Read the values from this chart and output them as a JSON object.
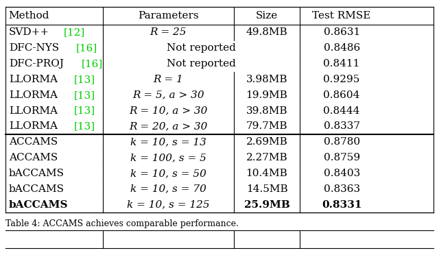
{
  "caption": "Table 4: ACCAMS achieves comparable performance.",
  "columns": [
    "Method",
    "Parameters",
    "Size",
    "Test RMSE"
  ],
  "rows": [
    {
      "method": "SVD++",
      "ref": "[12]",
      "params": "R = 25",
      "params_span": false,
      "size": "49.8MB",
      "rmse": "0.8631",
      "bold_size": false,
      "bold_rmse": false,
      "bold_method": false,
      "section": "top"
    },
    {
      "method": "DFC-NYS",
      "ref": "[16]",
      "params": "Not reported",
      "params_span": true,
      "size": "",
      "rmse": "0.8486",
      "bold_size": false,
      "bold_rmse": false,
      "bold_method": false,
      "section": "top"
    },
    {
      "method": "DFC-PROJ",
      "ref": "[16]",
      "params": "Not reported",
      "params_span": true,
      "size": "",
      "rmse": "0.8411",
      "bold_size": false,
      "bold_rmse": false,
      "bold_method": false,
      "section": "top"
    },
    {
      "method": "LLORMA",
      "ref": "[13]",
      "params": "R = 1",
      "params_span": false,
      "size": "3.98MB",
      "rmse": "0.9295",
      "bold_size": false,
      "bold_rmse": false,
      "bold_method": false,
      "section": "top"
    },
    {
      "method": "LLORMA",
      "ref": "[13]",
      "params": "R = 5, a > 30",
      "params_span": false,
      "size": "19.9MB",
      "rmse": "0.8604",
      "bold_size": false,
      "bold_rmse": false,
      "bold_method": false,
      "section": "top"
    },
    {
      "method": "LLORMA",
      "ref": "[13]",
      "params": "R = 10, a > 30",
      "params_span": false,
      "size": "39.8MB",
      "rmse": "0.8444",
      "bold_size": false,
      "bold_rmse": false,
      "bold_method": false,
      "section": "top"
    },
    {
      "method": "LLORMA",
      "ref": "[13]",
      "params": "R = 20, a > 30",
      "params_span": false,
      "size": "79.7MB",
      "rmse": "0.8337",
      "bold_size": false,
      "bold_rmse": false,
      "bold_method": false,
      "section": "top"
    },
    {
      "method": "ACCAMS",
      "ref": "",
      "params": "k = 10, s = 13",
      "params_span": false,
      "size": "2.69MB",
      "rmse": "0.8780",
      "bold_size": false,
      "bold_rmse": false,
      "bold_method": false,
      "section": "bottom"
    },
    {
      "method": "ACCAMS",
      "ref": "",
      "params": "k = 100, s = 5",
      "params_span": false,
      "size": "2.27MB",
      "rmse": "0.8759",
      "bold_size": false,
      "bold_rmse": false,
      "bold_method": false,
      "section": "bottom"
    },
    {
      "method": "bACCAMS",
      "ref": "",
      "params": "k = 10, s = 50",
      "params_span": false,
      "size": "10.4MB",
      "rmse": "0.8403",
      "bold_size": false,
      "bold_rmse": false,
      "bold_method": false,
      "section": "bottom"
    },
    {
      "method": "bACCAMS",
      "ref": "",
      "params": "k = 10, s = 70",
      "params_span": false,
      "size": "14.5MB",
      "rmse": "0.8363",
      "bold_size": false,
      "bold_rmse": false,
      "bold_method": false,
      "section": "bottom"
    },
    {
      "method": "bACCAMS",
      "ref": "",
      "params": "k = 10, s = 125",
      "params_span": false,
      "size": "25.9MB",
      "rmse": "0.8331",
      "bold_size": true,
      "bold_rmse": true,
      "bold_method": true,
      "section": "bottom"
    }
  ],
  "background_color": "#ffffff",
  "text_color": "#000000",
  "ref_color": "#00cc00",
  "font_size": 11.0,
  "header_font_size": 11.0,
  "section_boundary_after": 6
}
